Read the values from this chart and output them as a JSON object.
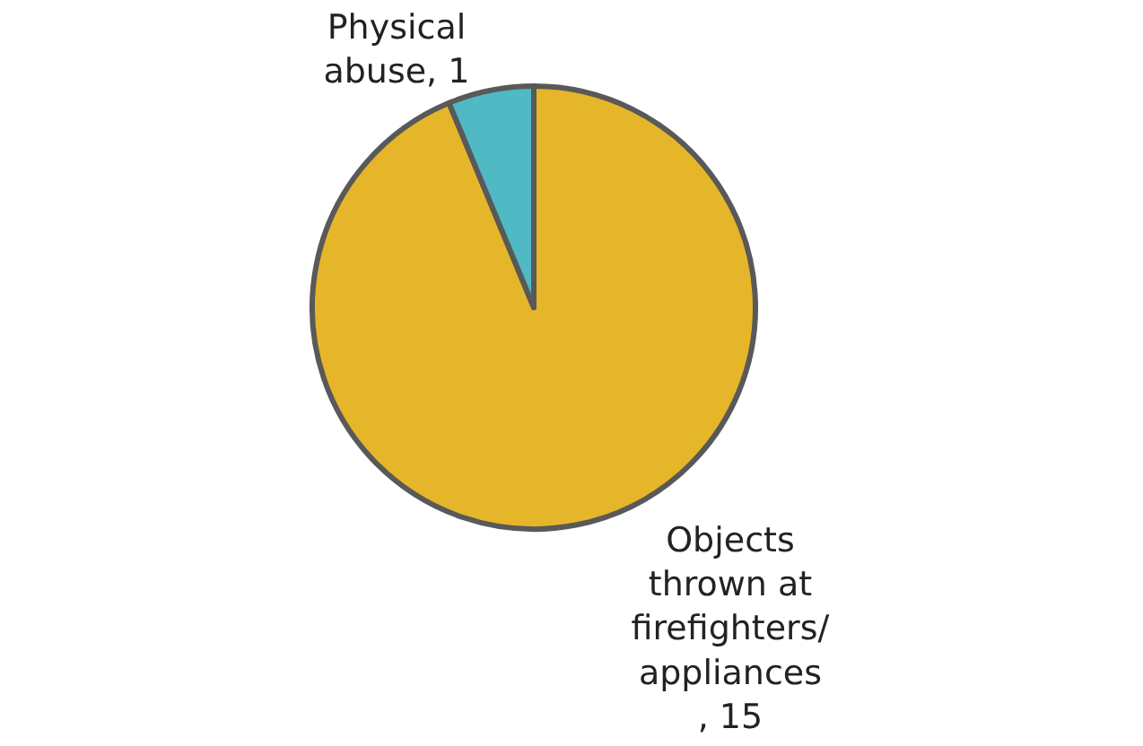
{
  "chart_data": {
    "type": "pie",
    "categories": [
      "Objects thrown at firefighters/ appliances",
      "Physical abuse"
    ],
    "values": [
      15,
      1
    ],
    "colors": [
      "#e6b62a",
      "#4fb9c4"
    ],
    "legend": false,
    "value_labels": [
      ", 15",
      ", 1"
    ]
  }
}
